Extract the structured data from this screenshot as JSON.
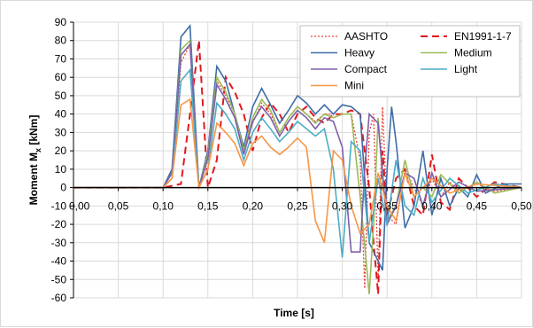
{
  "chart_data": {
    "type": "line",
    "xlabel": "Time [s]",
    "ylabel_main": "Moment M",
    "ylabel_sub": "x",
    "ylabel_unit": " [kNm]",
    "xlim": [
      0,
      0.5
    ],
    "ylim": [
      -60,
      90
    ],
    "grid": true,
    "legend_position": "top-right",
    "x_ticks": [
      {
        "value": 0.05,
        "label": "0,05"
      },
      {
        "value": 0.1,
        "label": "0,10"
      },
      {
        "value": 0.15,
        "label": "0,15"
      },
      {
        "value": 0.2,
        "label": "0,20"
      },
      {
        "value": 0.25,
        "label": "0,25"
      },
      {
        "value": 0.3,
        "label": "0,30"
      },
      {
        "value": 0.35,
        "label": "0,35"
      },
      {
        "value": 0.4,
        "label": "0,40"
      },
      {
        "value": 0.45,
        "label": "0,45"
      },
      {
        "value": 0.5,
        "label": "0,50"
      }
    ],
    "x_origin_label": "-10",
    "x_origin_label_tail": "0,00",
    "y_ticks": [
      90,
      80,
      70,
      60,
      50,
      40,
      30,
      20,
      10,
      0,
      -10,
      -20,
      -30,
      -40,
      -50,
      -60
    ],
    "series": [
      {
        "name": "AASHTO",
        "color": "#e8413a",
        "dash": "2,2",
        "width": 1.3,
        "points": [
          [
            0,
            0
          ],
          [
            0.1,
            0
          ],
          [
            0.11,
            5
          ],
          [
            0.12,
            68
          ],
          [
            0.13,
            78
          ],
          [
            0.14,
            0
          ],
          [
            0.15,
            15
          ],
          [
            0.16,
            58
          ],
          [
            0.17,
            50
          ],
          [
            0.18,
            40
          ],
          [
            0.19,
            20
          ],
          [
            0.2,
            35
          ],
          [
            0.21,
            46
          ],
          [
            0.22,
            40
          ],
          [
            0.23,
            30
          ],
          [
            0.24,
            38
          ],
          [
            0.25,
            44
          ],
          [
            0.26,
            40
          ],
          [
            0.27,
            36
          ],
          [
            0.28,
            40
          ],
          [
            0.29,
            40
          ],
          [
            0.3,
            40
          ],
          [
            0.31,
            40
          ],
          [
            0.32,
            15
          ],
          [
            0.325,
            -55
          ],
          [
            0.33,
            30
          ],
          [
            0.335,
            40
          ],
          [
            0.34,
            -50
          ],
          [
            0.345,
            44
          ],
          [
            0.35,
            -15
          ],
          [
            0.36,
            -20
          ],
          [
            0.37,
            10
          ],
          [
            0.38,
            0
          ],
          [
            0.39,
            -10
          ],
          [
            0.4,
            5
          ],
          [
            0.41,
            -5
          ],
          [
            0.42,
            3
          ],
          [
            0.43,
            -2
          ],
          [
            0.45,
            2
          ],
          [
            0.47,
            -2
          ],
          [
            0.5,
            0
          ]
        ]
      },
      {
        "name": "EN1991-1-7",
        "color": "#e0181e",
        "dash": "8,5",
        "width": 2.0,
        "points": [
          [
            0,
            0
          ],
          [
            0.1,
            0
          ],
          [
            0.12,
            2
          ],
          [
            0.13,
            40
          ],
          [
            0.14,
            80
          ],
          [
            0.15,
            0
          ],
          [
            0.16,
            15
          ],
          [
            0.17,
            60
          ],
          [
            0.18,
            52
          ],
          [
            0.19,
            40
          ],
          [
            0.2,
            20
          ],
          [
            0.21,
            38
          ],
          [
            0.22,
            46
          ],
          [
            0.23,
            40
          ],
          [
            0.24,
            30
          ],
          [
            0.25,
            40
          ],
          [
            0.26,
            44
          ],
          [
            0.27,
            38
          ],
          [
            0.28,
            35
          ],
          [
            0.29,
            40
          ],
          [
            0.3,
            40
          ],
          [
            0.31,
            42
          ],
          [
            0.32,
            40
          ],
          [
            0.33,
            0
          ],
          [
            0.335,
            -30
          ],
          [
            0.34,
            -58
          ],
          [
            0.345,
            20
          ],
          [
            0.35,
            -15
          ],
          [
            0.36,
            5
          ],
          [
            0.37,
            10
          ],
          [
            0.38,
            -10
          ],
          [
            0.39,
            -15
          ],
          [
            0.4,
            18
          ],
          [
            0.41,
            -8
          ],
          [
            0.42,
            -12
          ],
          [
            0.43,
            5
          ],
          [
            0.45,
            -5
          ],
          [
            0.47,
            3
          ],
          [
            0.5,
            0
          ]
        ]
      },
      {
        "name": "Heavy",
        "color": "#3e6ca8",
        "dash": "",
        "width": 1.6,
        "points": [
          [
            0,
            0
          ],
          [
            0.1,
            0
          ],
          [
            0.11,
            10
          ],
          [
            0.12,
            82
          ],
          [
            0.13,
            88
          ],
          [
            0.14,
            0
          ],
          [
            0.15,
            20
          ],
          [
            0.16,
            66
          ],
          [
            0.17,
            58
          ],
          [
            0.18,
            40
          ],
          [
            0.19,
            22
          ],
          [
            0.2,
            44
          ],
          [
            0.21,
            54
          ],
          [
            0.22,
            45
          ],
          [
            0.23,
            35
          ],
          [
            0.24,
            42
          ],
          [
            0.25,
            50
          ],
          [
            0.26,
            46
          ],
          [
            0.27,
            40
          ],
          [
            0.28,
            45
          ],
          [
            0.29,
            40
          ],
          [
            0.3,
            45
          ],
          [
            0.31,
            44
          ],
          [
            0.32,
            40
          ],
          [
            0.33,
            -30
          ],
          [
            0.34,
            -40
          ],
          [
            0.345,
            -45
          ],
          [
            0.35,
            10
          ],
          [
            0.355,
            44
          ],
          [
            0.36,
            25
          ],
          [
            0.37,
            -22
          ],
          [
            0.38,
            -10
          ],
          [
            0.39,
            20
          ],
          [
            0.4,
            -15
          ],
          [
            0.41,
            5
          ],
          [
            0.42,
            -10
          ],
          [
            0.43,
            0
          ],
          [
            0.44,
            -5
          ],
          [
            0.45,
            7
          ],
          [
            0.46,
            -3
          ],
          [
            0.48,
            2
          ],
          [
            0.5,
            2
          ]
        ]
      },
      {
        "name": "Medium",
        "color": "#9bbb59",
        "dash": "",
        "width": 1.6,
        "points": [
          [
            0,
            0
          ],
          [
            0.1,
            0
          ],
          [
            0.11,
            8
          ],
          [
            0.12,
            75
          ],
          [
            0.13,
            80
          ],
          [
            0.14,
            0
          ],
          [
            0.15,
            18
          ],
          [
            0.16,
            60
          ],
          [
            0.17,
            52
          ],
          [
            0.18,
            40
          ],
          [
            0.19,
            20
          ],
          [
            0.2,
            38
          ],
          [
            0.21,
            48
          ],
          [
            0.22,
            42
          ],
          [
            0.23,
            30
          ],
          [
            0.24,
            38
          ],
          [
            0.25,
            44
          ],
          [
            0.26,
            40
          ],
          [
            0.27,
            35
          ],
          [
            0.28,
            40
          ],
          [
            0.29,
            38
          ],
          [
            0.3,
            40
          ],
          [
            0.31,
            40
          ],
          [
            0.32,
            -5
          ],
          [
            0.33,
            -58
          ],
          [
            0.335,
            -20
          ],
          [
            0.34,
            38
          ],
          [
            0.345,
            5
          ],
          [
            0.35,
            -18
          ],
          [
            0.36,
            -10
          ],
          [
            0.37,
            15
          ],
          [
            0.38,
            -5
          ],
          [
            0.39,
            0
          ],
          [
            0.4,
            -5
          ],
          [
            0.41,
            7
          ],
          [
            0.43,
            -3
          ],
          [
            0.45,
            3
          ],
          [
            0.47,
            -3
          ],
          [
            0.5,
            0
          ]
        ]
      },
      {
        "name": "Compact",
        "color": "#7d5fa8",
        "dash": "",
        "width": 1.6,
        "points": [
          [
            0,
            0
          ],
          [
            0.1,
            0
          ],
          [
            0.11,
            8
          ],
          [
            0.12,
            72
          ],
          [
            0.13,
            78
          ],
          [
            0.14,
            0
          ],
          [
            0.15,
            16
          ],
          [
            0.16,
            56
          ],
          [
            0.17,
            48
          ],
          [
            0.18,
            38
          ],
          [
            0.19,
            18
          ],
          [
            0.2,
            36
          ],
          [
            0.21,
            44
          ],
          [
            0.22,
            38
          ],
          [
            0.23,
            28
          ],
          [
            0.24,
            36
          ],
          [
            0.25,
            42
          ],
          [
            0.26,
            38
          ],
          [
            0.27,
            32
          ],
          [
            0.28,
            38
          ],
          [
            0.29,
            36
          ],
          [
            0.3,
            22
          ],
          [
            0.31,
            -35
          ],
          [
            0.32,
            -35
          ],
          [
            0.325,
            10
          ],
          [
            0.33,
            40
          ],
          [
            0.34,
            35
          ],
          [
            0.35,
            -20
          ],
          [
            0.36,
            -10
          ],
          [
            0.37,
            8
          ],
          [
            0.38,
            5
          ],
          [
            0.39,
            -10
          ],
          [
            0.4,
            8
          ],
          [
            0.41,
            -5
          ],
          [
            0.43,
            3
          ],
          [
            0.45,
            -2
          ],
          [
            0.5,
            0
          ]
        ]
      },
      {
        "name": "Light",
        "color": "#4bacc6",
        "dash": "",
        "width": 1.6,
        "points": [
          [
            0,
            0
          ],
          [
            0.1,
            0
          ],
          [
            0.11,
            5
          ],
          [
            0.12,
            58
          ],
          [
            0.13,
            64
          ],
          [
            0.14,
            0
          ],
          [
            0.15,
            10
          ],
          [
            0.16,
            46
          ],
          [
            0.17,
            40
          ],
          [
            0.18,
            32
          ],
          [
            0.19,
            15
          ],
          [
            0.2,
            30
          ],
          [
            0.21,
            38
          ],
          [
            0.22,
            32
          ],
          [
            0.23,
            25
          ],
          [
            0.24,
            30
          ],
          [
            0.25,
            36
          ],
          [
            0.26,
            32
          ],
          [
            0.27,
            28
          ],
          [
            0.28,
            32
          ],
          [
            0.29,
            10
          ],
          [
            0.3,
            -38
          ],
          [
            0.31,
            25
          ],
          [
            0.32,
            20
          ],
          [
            0.33,
            -30
          ],
          [
            0.34,
            5
          ],
          [
            0.35,
            -20
          ],
          [
            0.36,
            15
          ],
          [
            0.37,
            -10
          ],
          [
            0.38,
            -15
          ],
          [
            0.39,
            5
          ],
          [
            0.4,
            -8
          ],
          [
            0.42,
            5
          ],
          [
            0.44,
            -3
          ],
          [
            0.47,
            2
          ],
          [
            0.5,
            0
          ]
        ]
      },
      {
        "name": "Mini",
        "color": "#f79646",
        "dash": "",
        "width": 1.6,
        "points": [
          [
            0,
            0
          ],
          [
            0.1,
            0
          ],
          [
            0.11,
            5
          ],
          [
            0.12,
            45
          ],
          [
            0.13,
            48
          ],
          [
            0.14,
            0
          ],
          [
            0.15,
            10
          ],
          [
            0.16,
            35
          ],
          [
            0.17,
            30
          ],
          [
            0.18,
            24
          ],
          [
            0.19,
            12
          ],
          [
            0.2,
            24
          ],
          [
            0.21,
            28
          ],
          [
            0.22,
            22
          ],
          [
            0.23,
            18
          ],
          [
            0.24,
            22
          ],
          [
            0.25,
            27
          ],
          [
            0.26,
            22
          ],
          [
            0.27,
            -18
          ],
          [
            0.28,
            -30
          ],
          [
            0.29,
            20
          ],
          [
            0.3,
            15
          ],
          [
            0.31,
            -10
          ],
          [
            0.32,
            -25
          ],
          [
            0.33,
            -20
          ],
          [
            0.34,
            8
          ],
          [
            0.35,
            -10
          ],
          [
            0.36,
            -18
          ],
          [
            0.37,
            8
          ],
          [
            0.38,
            -5
          ],
          [
            0.4,
            5
          ],
          [
            0.42,
            -3
          ],
          [
            0.45,
            2
          ],
          [
            0.5,
            0
          ]
        ]
      }
    ]
  }
}
